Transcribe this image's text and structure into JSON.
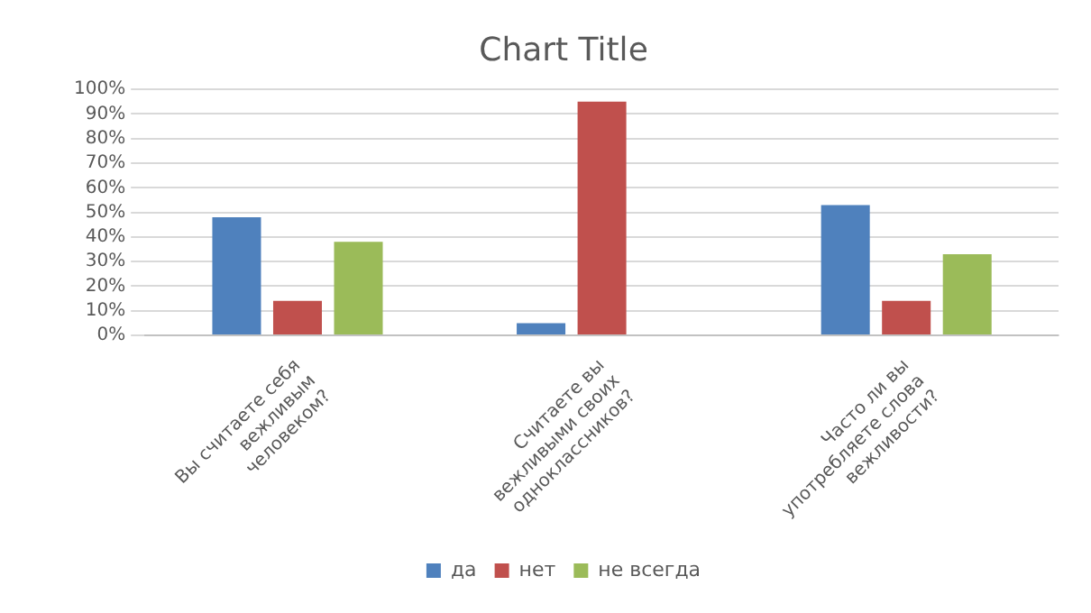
{
  "chart_data": {
    "type": "bar",
    "title": "Chart Title",
    "categories": [
      "Вы считаете себя вежливым человеком?",
      "Считаете вы вежливыми своих одноклассников?",
      "Часто ли вы употребляете слова вежливости?"
    ],
    "series": [
      {
        "name": "да",
        "color": "#4f81bd",
        "values": [
          48,
          5,
          53
        ]
      },
      {
        "name": "нет",
        "color": "#c0504d",
        "values": [
          14,
          95,
          14
        ]
      },
      {
        "name": "не всегда",
        "color": "#9bbb59",
        "values": [
          38,
          0,
          33
        ]
      }
    ],
    "ylim": [
      0,
      100
    ],
    "yticks": [
      {
        "value": 0,
        "label": "0%"
      },
      {
        "value": 10,
        "label": "10%"
      },
      {
        "value": 20,
        "label": "20%"
      },
      {
        "value": 30,
        "label": "30%"
      },
      {
        "value": 40,
        "label": "40%"
      },
      {
        "value": 50,
        "label": "50%"
      },
      {
        "value": 60,
        "label": "60%"
      },
      {
        "value": 70,
        "label": "70%"
      },
      {
        "value": 80,
        "label": "80%"
      },
      {
        "value": 90,
        "label": "90%"
      },
      {
        "value": 100,
        "label": "100%"
      }
    ],
    "grid": "y",
    "legend": "bottom"
  }
}
